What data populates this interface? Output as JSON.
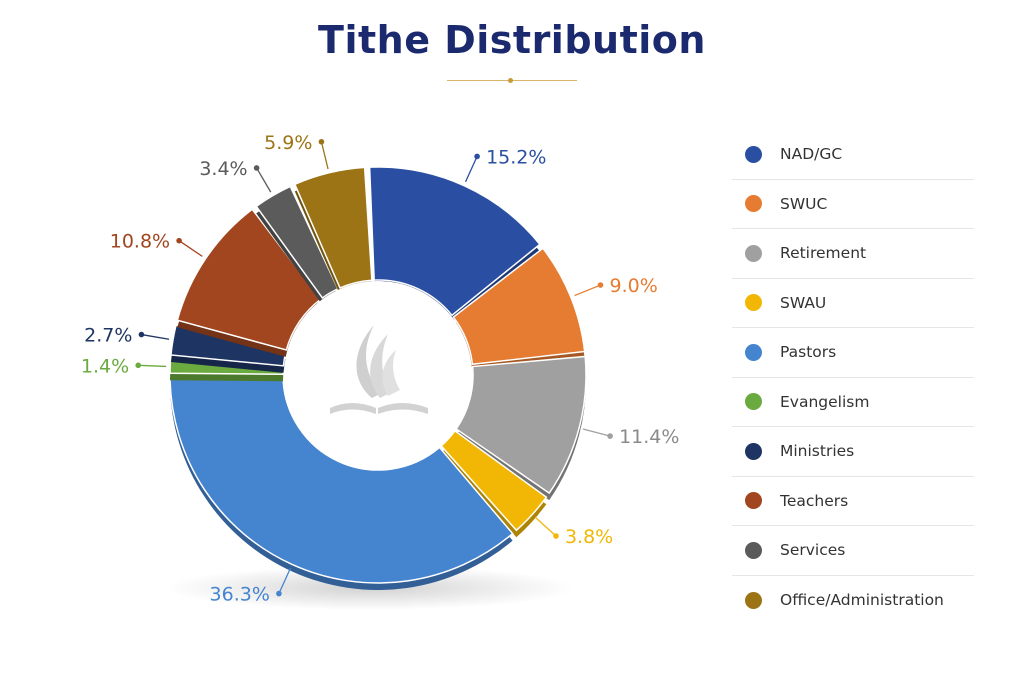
{
  "header": {
    "title": "Tithe Distribution"
  },
  "chart_data": {
    "type": "pie",
    "donut": true,
    "title": "Tithe Distribution",
    "unit": "%",
    "start_angle_deg": -3,
    "categories": [
      "NAD/GC",
      "SWUC",
      "Retirement",
      "SWAU",
      "Pastors",
      "Evangelism",
      "Ministries",
      "Teachers",
      "Services",
      "Office/Administration"
    ],
    "values": [
      15.2,
      9.0,
      11.4,
      3.8,
      36.3,
      1.4,
      2.7,
      10.8,
      3.4,
      5.9
    ],
    "value_labels": [
      "15.2%",
      "9.0%",
      "11.4%",
      "3.8%",
      "36.3%",
      "1.4%",
      "2.7%",
      "10.8%",
      "3.4%",
      "5.9%"
    ],
    "colors": [
      "#2a4fa2",
      "#e57c32",
      "#a0a0a0",
      "#f2b705",
      "#4584cf",
      "#6aaa3f",
      "#1e3564",
      "#a1461f",
      "#5b5b5b",
      "#9c7416"
    ],
    "legend_position": "right",
    "legend": [
      "NAD/GC",
      "SWUC",
      "Retirement",
      "SWAU",
      "Pastors",
      "Evangelism",
      "Ministries",
      "Teachers",
      "Services",
      "Office/Administration"
    ]
  },
  "center_logo": {
    "icon": "flame-bible-logo-icon"
  }
}
